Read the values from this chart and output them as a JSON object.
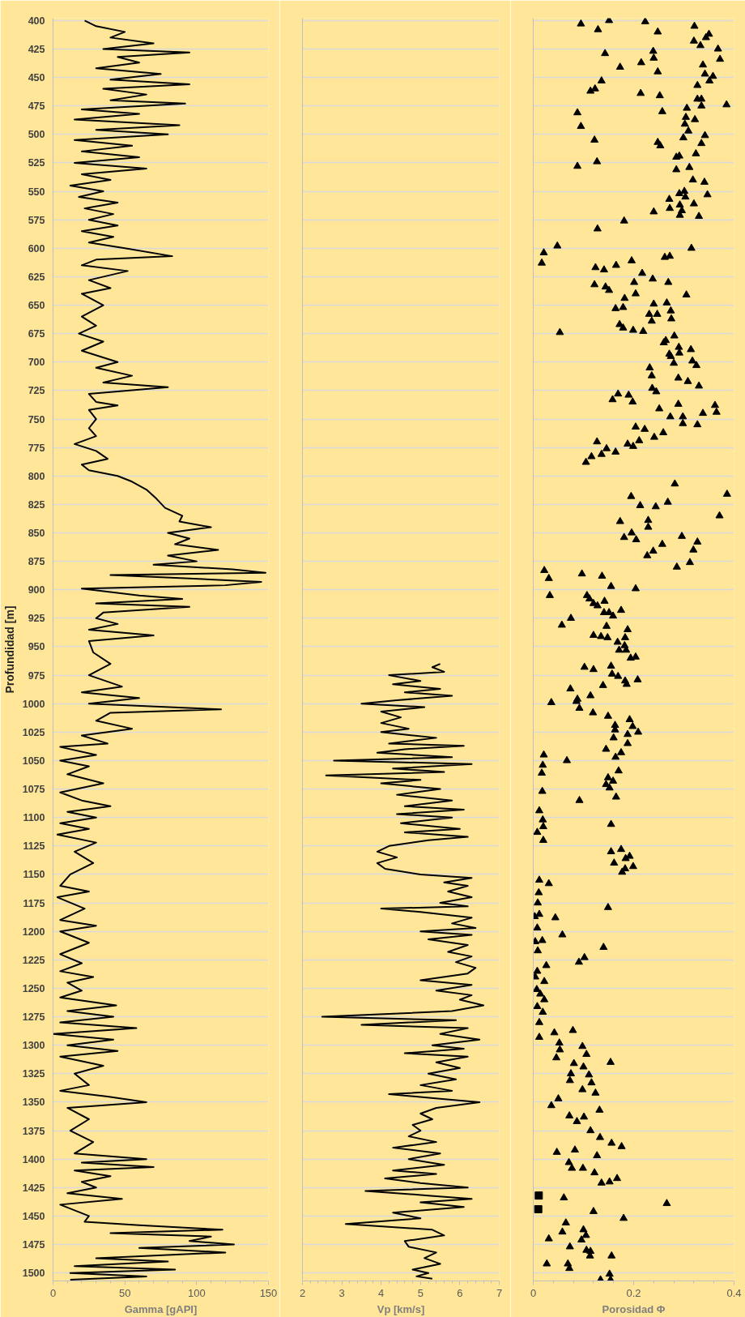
{
  "chart_data": [
    {
      "type": "line",
      "xlabel": "Gamma [gAPI]",
      "ylabel": "Profundidad [m]",
      "xlim": [
        0,
        150
      ],
      "xticks": [
        0,
        50,
        100,
        150
      ],
      "ylim": [
        1507,
        398
      ],
      "yticks": [
        400,
        425,
        450,
        475,
        500,
        525,
        550,
        575,
        600,
        625,
        650,
        675,
        700,
        725,
        750,
        775,
        800,
        825,
        850,
        875,
        900,
        925,
        950,
        975,
        1000,
        1025,
        1050,
        1075,
        1100,
        1125,
        1150,
        1175,
        1200,
        1225,
        1250,
        1275,
        1300,
        1325,
        1350,
        1375,
        1400,
        1425,
        1450,
        1475,
        1500
      ],
      "grid": "y",
      "line_style": "solid",
      "series": [
        {
          "color": "#000000",
          "x": [
            22,
            30,
            50,
            40,
            70,
            35,
            95,
            45,
            60,
            30,
            75,
            40,
            95,
            35,
            65,
            40,
            92,
            20,
            60,
            15,
            88,
            30,
            80,
            15,
            55,
            20,
            60,
            15,
            65,
            20,
            40,
            12,
            35,
            18,
            45,
            22,
            42,
            25,
            45,
            20,
            42,
            25,
            50,
            83,
            30,
            20,
            52,
            25,
            40,
            20,
            35,
            20,
            30,
            18,
            35,
            20,
            45,
            30,
            55,
            35,
            80,
            25,
            30,
            45,
            25,
            30,
            25,
            30,
            15,
            30,
            38,
            20,
            25,
            45,
            55,
            65,
            72,
            78,
            90,
            88,
            110,
            80,
            95,
            85,
            115,
            80,
            100,
            70,
            125,
            148,
            40,
            95,
            145,
            120,
            20,
            60,
            90,
            30,
            95,
            35,
            30,
            45,
            25,
            70,
            25,
            28,
            40,
            25,
            48,
            20,
            60,
            25,
            117,
            40,
            30,
            55,
            20,
            38,
            5,
            30,
            5,
            25,
            10,
            35,
            5,
            20,
            40,
            10,
            30,
            5,
            25,
            3,
            30,
            15,
            28,
            12,
            5,
            25,
            3,
            22,
            5,
            30,
            5,
            25,
            5,
            20,
            5,
            28,
            10,
            20,
            5,
            44,
            10,
            42,
            5,
            58,
            0,
            42,
            10,
            45,
            5,
            35,
            15,
            25,
            5,
            38,
            65,
            10,
            25,
            12,
            28,
            15,
            65,
            20,
            70,
            15,
            40,
            20,
            30,
            10,
            48,
            5,
            15,
            25,
            22,
            60,
            118,
            40,
            110,
            95,
            126,
            60,
            120,
            30,
            80,
            15,
            85,
            12,
            65,
            12
          ],
          "values": [
            400,
            405,
            410,
            415,
            420,
            425,
            428,
            432,
            437,
            442,
            447,
            452,
            456,
            460,
            465,
            470,
            473,
            478,
            482,
            487,
            492,
            496,
            500,
            505,
            510,
            515,
            520,
            525,
            530,
            535,
            540,
            545,
            550,
            555,
            560,
            565,
            570,
            575,
            580,
            585,
            590,
            595,
            600,
            607,
            610,
            615,
            620,
            628,
            635,
            640,
            650,
            660,
            668,
            675,
            682,
            690,
            700,
            705,
            712,
            718,
            722,
            728,
            735,
            738,
            742,
            750,
            758,
            765,
            772,
            778,
            785,
            790,
            795,
            800,
            805,
            812,
            820,
            828,
            835,
            840,
            845,
            850,
            855,
            860,
            865,
            870,
            875,
            878,
            882,
            885,
            887,
            890,
            893,
            896,
            899,
            905,
            908,
            912,
            915,
            920,
            925,
            930,
            935,
            940,
            945,
            955,
            965,
            975,
            985,
            990,
            995,
            1000,
            1005,
            1008,
            1015,
            1022,
            1028,
            1035,
            1038,
            1045,
            1050,
            1055,
            1062,
            1070,
            1078,
            1085,
            1090,
            1095,
            1100,
            1105,
            1110,
            1115,
            1122,
            1130,
            1140,
            1150,
            1160,
            1165,
            1170,
            1180,
            1190,
            1195,
            1200,
            1210,
            1220,
            1228,
            1235,
            1240,
            1245,
            1252,
            1258,
            1265,
            1270,
            1275,
            1280,
            1285,
            1290,
            1295,
            1300,
            1305,
            1310,
            1318,
            1325,
            1335,
            1340,
            1345,
            1350,
            1355,
            1365,
            1375,
            1385,
            1395,
            1400,
            1403,
            1407,
            1410,
            1415,
            1420,
            1425,
            1430,
            1435,
            1440,
            1445,
            1450,
            1455,
            1458,
            1462,
            1465,
            1468,
            1472,
            1475,
            1478,
            1482,
            1487,
            1490,
            1494,
            1497,
            1500,
            1503,
            1506
          ]
        }
      ]
    },
    {
      "type": "line",
      "xlabel": "Vp [km/s]",
      "xlim": [
        2,
        7
      ],
      "xticks": [
        2,
        3,
        4,
        5,
        6,
        7
      ],
      "ylim": [
        1507,
        398
      ],
      "yticks": [
        400,
        425,
        450,
        475,
        500,
        525,
        550,
        575,
        600,
        625,
        650,
        675,
        700,
        725,
        750,
        775,
        800,
        825,
        850,
        875,
        900,
        925,
        950,
        975,
        1000,
        1025,
        1050,
        1075,
        1100,
        1125,
        1150,
        1175,
        1200,
        1225,
        1250,
        1275,
        1300,
        1325,
        1350,
        1375,
        1400,
        1425,
        1450,
        1475,
        1500
      ],
      "grid": "y",
      "tick_labels": "x",
      "line_style": "solid",
      "series": [
        {
          "color": "#000000",
          "x": [
            5.5,
            5.3,
            5.6,
            4.2,
            5.0,
            4.3,
            5.5,
            4.6,
            5.8,
            4.4,
            3.5,
            5.1,
            4.0,
            4.5,
            4.0,
            4.7,
            4.0,
            5.4,
            4.2,
            6.1,
            4.6,
            3.9,
            5.8,
            2.8,
            6.3,
            4.3,
            5.6,
            2.6,
            5.0,
            4.0,
            5.5,
            4.4,
            5.8,
            4.6,
            6.1,
            4.4,
            5.8,
            4.5,
            6.0,
            4.6,
            6.2,
            5.2,
            4.2,
            3.9,
            4.4,
            3.9,
            4.1,
            5.0,
            6.3,
            5.6,
            6.2,
            5.7,
            6.3,
            5.5,
            6.2,
            4.0,
            5.0,
            6.3,
            5.8,
            6.4,
            5.0,
            6.3,
            5.2,
            6.2,
            5.7,
            6.3,
            5.9,
            6.4,
            6.2,
            5.0,
            6.3,
            5.4,
            6.3,
            6.0,
            6.6,
            5.8,
            2.5,
            5.9,
            3.5,
            6.2,
            5.5,
            6.5,
            5.3,
            6.1,
            4.6,
            6.2,
            5.4,
            6.0,
            5.2,
            5.9,
            5.0,
            5.8,
            4.2,
            5.5,
            6.5,
            5.4,
            5.0,
            5.3,
            4.8,
            5.0,
            4.7,
            5.4,
            4.3,
            5.5,
            4.7,
            5.6,
            4.3,
            5.4,
            4.1,
            5.0,
            6.2,
            3.6,
            5.2,
            6.3,
            5.0,
            6.1,
            4.3,
            5.0,
            3.1,
            5.3,
            5.6,
            4.6,
            4.7,
            5.4,
            5.1,
            5.5,
            4.8,
            5.2,
            4.9,
            5.3
          ],
          "values": [
            965,
            968,
            972,
            975,
            980,
            983,
            987,
            990,
            993,
            997,
            1000,
            1003,
            1007,
            1012,
            1017,
            1022,
            1025,
            1030,
            1035,
            1037,
            1040,
            1043,
            1047,
            1050,
            1053,
            1057,
            1060,
            1063,
            1067,
            1070,
            1075,
            1080,
            1085,
            1090,
            1093,
            1097,
            1100,
            1105,
            1110,
            1113,
            1117,
            1120,
            1125,
            1130,
            1135,
            1140,
            1145,
            1150,
            1153,
            1157,
            1160,
            1165,
            1170,
            1175,
            1178,
            1180,
            1183,
            1188,
            1193,
            1197,
            1200,
            1203,
            1207,
            1212,
            1218,
            1222,
            1227,
            1232,
            1237,
            1243,
            1247,
            1252,
            1256,
            1260,
            1265,
            1270,
            1275,
            1278,
            1282,
            1285,
            1290,
            1295,
            1300,
            1303,
            1307,
            1310,
            1315,
            1320,
            1325,
            1330,
            1335,
            1340,
            1343,
            1347,
            1350,
            1355,
            1360,
            1365,
            1370,
            1375,
            1380,
            1385,
            1390,
            1395,
            1400,
            1405,
            1410,
            1413,
            1417,
            1421,
            1425,
            1428,
            1432,
            1435,
            1438,
            1442,
            1447,
            1452,
            1457,
            1462,
            1467,
            1472,
            1477,
            1482,
            1487,
            1492,
            1497,
            1500,
            1503,
            1505
          ]
        }
      ]
    },
    {
      "type": "scatter",
      "xlabel": "Porosidad Φ",
      "xlim": [
        0,
        0.4
      ],
      "xticks": [
        0,
        0.2,
        0.4
      ],
      "ylim": [
        1507,
        398
      ],
      "yticks": [
        400,
        425,
        450,
        475,
        500,
        525,
        550,
        575,
        600,
        625,
        650,
        675,
        700,
        725,
        750,
        775,
        800,
        825,
        850,
        875,
        900,
        925,
        950,
        975,
        1000,
        1025,
        1050,
        1075,
        1100,
        1125,
        1150,
        1175,
        1200,
        1225,
        1250,
        1275,
        1300,
        1325,
        1350,
        1375,
        1400,
        1425,
        1450,
        1475,
        1500
      ],
      "grid": "y",
      "tick_labels": "x",
      "marker": "triangle",
      "series": [
        {
          "color": "#000000",
          "x": [
            0.095,
            0.129,
            0.151,
            0.223,
            0.248,
            0.321,
            0.32,
            0.333,
            0.344,
            0.35,
            0.368,
            0.372,
            0.143,
            0.239,
            0.24,
            0.215,
            0.173,
            0.248,
            0.338,
            0.342,
            0.351,
            0.358,
            0.327,
            0.136,
            0.123,
            0.114,
            0.214,
            0.252,
            0.327,
            0.335,
            0.335,
            0.385,
            0.306,
            0.257,
            0.088,
            0.095,
            0.304,
            0.322,
            0.302,
            0.309,
            0.342,
            0.299,
            0.335,
            0.122,
            0.248,
            0.253,
            0.324,
            0.291,
            0.285,
            0.127,
            0.088,
            0.311,
            0.285,
            0.318,
            0.341,
            0.347,
            0.291,
            0.301,
            0.303,
            0.271,
            0.272,
            0.292,
            0.296,
            0.292,
            0.32,
            0.33,
            0.24,
            0.181,
            0.128,
            0.048,
            0.021,
            0.017,
            0.315,
            0.262,
            0.272,
            0.124,
            0.141,
            0.165,
            0.196,
            0.217,
            0.238,
            0.269,
            0.122,
            0.144,
            0.151,
            0.201,
            0.204,
            0.305,
            0.182,
            0.179,
            0.164,
            0.24,
            0.266,
            0.231,
            0.247,
            0.236,
            0.274,
            0.275,
            0.053,
            0.172,
            0.179,
            0.199,
            0.219,
            0.264,
            0.26,
            0.281,
            0.271,
            0.274,
            0.29,
            0.291,
            0.28,
            0.314,
            0.317,
            0.325,
            0.289,
            0.308,
            0.33,
            0.232,
            0.236,
            0.237,
            0.245,
            0.169,
            0.158,
            0.19,
            0.198,
            0.251,
            0.289,
            0.273,
            0.298,
            0.298,
            0.327,
            0.338,
            0.362,
            0.365,
            0.204,
            0.222,
            0.259,
            0.241,
            0.211,
            0.199,
            0.188,
            0.164,
            0.127,
            0.146,
            0.136,
            0.116,
            0.105,
            0.282,
            0.386,
            0.195,
            0.213,
            0.244,
            0.268,
            0.371,
            0.173,
            0.229,
            0.229,
            0.196,
            0.181,
            0.205,
            0.296,
            0.257,
            0.227,
            0.239,
            0.327,
            0.319,
            0.286,
            0.312,
            0.022,
            0.031,
            0.033,
            0.097,
            0.137,
            0.155,
            0.204,
            0.107,
            0.112,
            0.12,
            0.128,
            0.142,
            0.175,
            0.141,
            0.151,
            0.159,
            0.057,
            0.075,
            0.146,
            0.188,
            0.12,
            0.135,
            0.148,
            0.183,
            0.168,
            0.182,
            0.171,
            0.185,
            0.194,
            0.204,
            0.102,
            0.12,
            0.155,
            0.157,
            0.169,
            0.183,
            0.186,
            0.208,
            0.139,
            0.074,
            0.088,
            0.114,
            0.036,
            0.086,
            0.092,
            0.119,
            0.149,
            0.192,
            0.198,
            0.209,
            0.163,
            0.163,
            0.16,
            0.188,
            0.188,
            0.175,
            0.145,
            0.164,
            0.021,
            0.019,
            0.017,
            0.067,
            0.17,
            0.149,
            0.159,
            0.145,
            0.152,
            0.018,
            0.092,
            0.165,
            0.012,
            0.019,
            0.02,
            0.008,
            0.02,
            0.155,
            0.155,
            0.175,
            0.161,
            0.184,
            0.192,
            0.199,
            0.177,
            0.183,
            0.012,
            0.031,
            0.011,
            0.009,
            0.012,
            0.003,
            0.149,
            0.044,
            0.008,
            0.058,
            0.018,
            0.004,
            0.009,
            0.14,
            0.102,
            0.091,
            0.026,
            0.008,
            0.004,
            0.022,
            0.007,
            0.014,
            0.022,
            0.008,
            0.019,
            0.012,
            0.012,
            0.042,
            0.079,
            0.052,
            0.053,
            0.046,
            0.098,
            0.106,
            0.154,
            0.081,
            0.1,
            0.075,
            0.073,
            0.111,
            0.116,
            0.098,
            0.124,
            0.05,
            0.036,
            0.132,
            0.072,
            0.087,
            0.101,
            0.114,
            0.133,
            0.156,
            0.176,
            0.047,
            0.083,
            0.127,
            0.071,
            0.077,
            0.099,
            0.122,
            0.136,
            0.152,
            0.167,
            0.061,
            0.266,
            0.12,
            0.18,
            0.065,
            0.058,
            0.1,
            0.105,
            0.031,
            0.096,
            0.073,
            0.106,
            0.114,
            0.113,
            0.156,
            0.027,
            0.069,
            0.072,
            0.152,
            0.154,
            0.134
          ],
          "values": [
            403,
            408,
            400,
            401,
            410,
            405,
            418,
            422,
            415,
            412,
            425,
            434,
            429,
            427,
            433,
            437,
            441,
            445,
            439,
            447,
            453,
            449,
            457,
            453,
            460,
            462,
            464,
            466,
            469,
            469,
            475,
            474,
            477,
            480,
            481,
            493,
            485,
            487,
            491,
            497,
            501,
            503,
            508,
            505,
            507,
            510,
            517,
            519,
            520,
            524,
            528,
            529,
            531,
            540,
            542,
            553,
            552,
            550,
            555,
            557,
            565,
            562,
            567,
            571,
            561,
            572,
            568,
            576,
            583,
            598,
            604,
            613,
            600,
            608,
            607,
            617,
            619,
            615,
            611,
            622,
            627,
            630,
            632,
            634,
            637,
            630,
            640,
            641,
            644,
            652,
            653,
            649,
            648,
            658,
            658,
            664,
            655,
            662,
            674,
            667,
            670,
            672,
            673,
            681,
            683,
            677,
            693,
            695,
            687,
            692,
            701,
            689,
            699,
            703,
            714,
            717,
            721,
            705,
            712,
            723,
            726,
            728,
            733,
            729,
            735,
            741,
            737,
            748,
            748,
            754,
            755,
            745,
            738,
            744,
            757,
            759,
            762,
            766,
            769,
            774,
            772,
            779,
            770,
            776,
            781,
            783,
            788,
            807,
            816,
            818,
            826,
            827,
            823,
            835,
            840,
            839,
            845,
            850,
            854,
            856,
            853,
            860,
            870,
            866,
            858,
            865,
            880,
            876,
            883,
            890,
            905,
            886,
            888,
            897,
            899,
            905,
            908,
            912,
            914,
            910,
            918,
            920,
            920,
            923,
            931,
            925,
            932,
            935,
            940,
            941,
            942,
            942,
            946,
            949,
            953,
            953,
            960,
            959,
            968,
            970,
            967,
            974,
            976,
            980,
            983,
            979,
            984,
            987,
            996,
            993,
            999,
            998,
            1004,
            1008,
            1011,
            1014,
            1020,
            1025,
            1019,
            1023,
            1030,
            1027,
            1035,
            1043,
            1040,
            1047,
            1045,
            1054,
            1061,
            1050,
            1059,
            1065,
            1068,
            1071,
            1074,
            1077,
            1085,
            1082,
            1094,
            1102,
            1108,
            1113,
            1120,
            1106,
            1130,
            1128,
            1140,
            1136,
            1134,
            1143,
            1148,
            1145,
            1155,
            1158,
            1166,
            1175,
            1185,
            1187,
            1179,
            1188,
            1197,
            1203,
            1208,
            1209,
            1217,
            1214,
            1223,
            1227,
            1230,
            1235,
            1240,
            1244,
            1251,
            1255,
            1260,
            1266,
            1271,
            1280,
            1293,
            1289,
            1287,
            1298,
            1304,
            1311,
            1301,
            1308,
            1315,
            1316,
            1319,
            1325,
            1331,
            1326,
            1333,
            1339,
            1342,
            1347,
            1353,
            1357,
            1362,
            1367,
            1363,
            1375,
            1381,
            1386,
            1389,
            1394,
            1392,
            1397,
            1403,
            1408,
            1408,
            1412,
            1421,
            1420,
            1417,
            1434,
            1439,
            1446,
            1452,
            1456,
            1464,
            1462,
            1467,
            1470,
            1471,
            1477,
            1480,
            1481,
            1485,
            1485,
            1492,
            1492,
            1496,
            1501,
            1506,
            1506
          ]
        },
        {
          "color": "#000000",
          "marker": "square",
          "x": [
            0.011,
            0.01
          ],
          "values": [
            1432,
            1444
          ]
        }
      ]
    }
  ]
}
